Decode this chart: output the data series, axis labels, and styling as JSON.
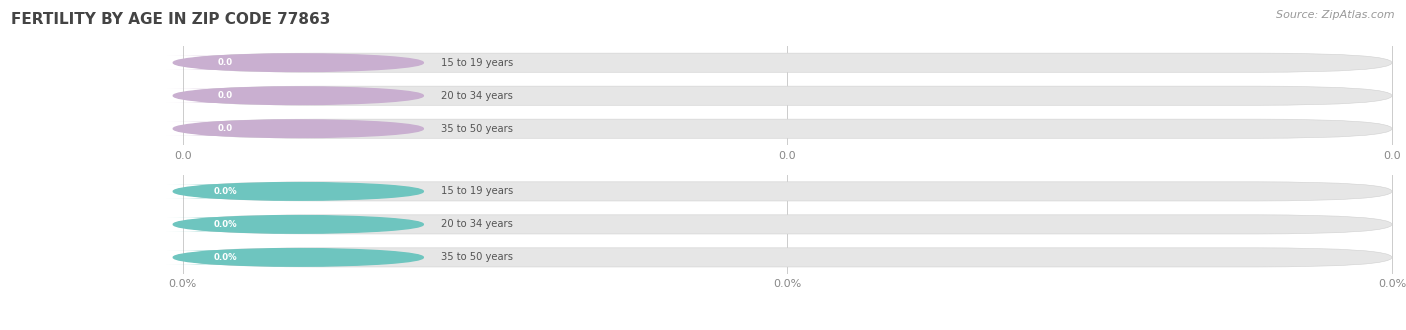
{
  "title": "FERTILITY BY AGE IN ZIP CODE 77863",
  "source": "Source: ZipAtlas.com",
  "background_color": "#ffffff",
  "top_section": {
    "categories": [
      "15 to 19 years",
      "20 to 34 years",
      "35 to 50 years"
    ],
    "values": [
      0.0,
      0.0,
      0.0
    ],
    "bar_color": "#c9afd0",
    "bar_bg_color": "#e4e4e4",
    "value_labels": [
      "0.0",
      "0.0",
      "0.0"
    ],
    "x_ticks": [
      "0.0",
      "0.0",
      "0.0"
    ]
  },
  "bottom_section": {
    "categories": [
      "15 to 19 years",
      "20 to 34 years",
      "35 to 50 years"
    ],
    "values": [
      0.0,
      0.0,
      0.0
    ],
    "bar_color": "#6ec5bf",
    "bar_bg_color": "#e4e4e4",
    "value_labels": [
      "0.0%",
      "0.0%",
      "0.0%"
    ],
    "x_ticks": [
      "0.0%",
      "0.0%",
      "0.0%"
    ]
  },
  "figsize": [
    14.06,
    3.3
  ],
  "dpi": 100
}
